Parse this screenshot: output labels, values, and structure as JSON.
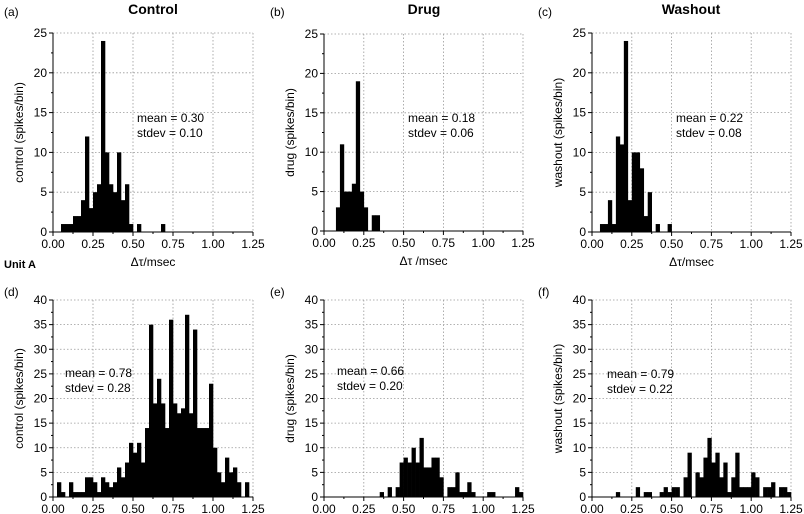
{
  "column_titles": [
    "Control",
    "Drug",
    "Washout"
  ],
  "row_label": "Unit A",
  "chart_data": [
    {
      "panel": "(a)",
      "type": "bar",
      "ylabel": "control (spikes/bin)",
      "xlabel": "Δτ/msec",
      "xlim": [
        0,
        1.25
      ],
      "ylim": [
        0,
        25
      ],
      "xticks": [
        "0.00",
        "0.25",
        "0.50",
        "0.75",
        "1.00",
        "1.25"
      ],
      "yticks": [
        "0",
        "5",
        "10",
        "15",
        "20",
        "25"
      ],
      "grid": true,
      "bin_start": 0,
      "bin_width": 0.025,
      "values": [
        0,
        0,
        1,
        1,
        1,
        2,
        2,
        4,
        12,
        3,
        5,
        6,
        24,
        10,
        6,
        5,
        10,
        4,
        6,
        1,
        0,
        1,
        0,
        0,
        0,
        0,
        0,
        1,
        0,
        0,
        0,
        0,
        0,
        0,
        0,
        0,
        0,
        0,
        0,
        0,
        0,
        0,
        0,
        0,
        0,
        0,
        0,
        0,
        0,
        0
      ],
      "annotation": [
        "mean = 0.30",
        "stdev = 0.10"
      ]
    },
    {
      "panel": "(b)",
      "type": "bar",
      "ylabel": "drug (spikes/bin)",
      "xlabel": "Δτ /msec",
      "xlim": [
        0,
        1.25
      ],
      "ylim": [
        0,
        25
      ],
      "xticks": [
        "0.00",
        "0.25",
        "0.50",
        "0.75",
        "1.00",
        "1.25"
      ],
      "yticks": [
        "0",
        "5",
        "10",
        "15",
        "20",
        "25"
      ],
      "grid": true,
      "bin_start": 0,
      "bin_width": 0.025,
      "values": [
        0,
        0,
        0,
        3,
        11,
        5,
        5,
        6,
        19,
        5,
        3,
        0,
        2,
        2,
        0,
        0,
        0,
        0,
        0,
        0,
        0,
        0,
        0,
        0,
        0,
        0,
        0,
        0,
        0,
        0,
        0,
        0,
        0,
        0,
        0,
        0,
        0,
        0,
        0,
        0,
        0,
        0,
        0,
        0,
        0,
        0,
        0,
        0,
        0,
        0
      ],
      "annotation": [
        "mean = 0.18",
        "stdev = 0.06"
      ]
    },
    {
      "panel": "(c)",
      "type": "bar",
      "ylabel": "washout (spikes/bin)",
      "xlabel": "Δτ/msec",
      "xlim": [
        0,
        1.25
      ],
      "ylim": [
        0,
        25
      ],
      "xticks": [
        "0.00",
        "0.25",
        "0.50",
        "0.75",
        "1.00",
        "1.25"
      ],
      "yticks": [
        "0",
        "5",
        "10",
        "15",
        "20",
        "25"
      ],
      "grid": true,
      "bin_start": 0,
      "bin_width": 0.025,
      "values": [
        0,
        0,
        1,
        1,
        4,
        1,
        12,
        11,
        24,
        4,
        10,
        10,
        8,
        2,
        5,
        0,
        1,
        0,
        0,
        1,
        0,
        0,
        0,
        0,
        0,
        0,
        0,
        0,
        0,
        0,
        0,
        0,
        0,
        0,
        0,
        0,
        0,
        0,
        0,
        0,
        0,
        0,
        0,
        0,
        0,
        0,
        0,
        0,
        0,
        0
      ],
      "annotation": [
        "mean = 0.22",
        "stdev = 0.08"
      ]
    },
    {
      "panel": "(d)",
      "type": "bar",
      "ylabel": "control (spikes/bin)",
      "xlabel": "",
      "xlim": [
        0,
        1.25
      ],
      "ylim": [
        0,
        40
      ],
      "xticks": [
        "0.00",
        "0.25",
        "0.50",
        "0.75",
        "1.00",
        "1.25"
      ],
      "yticks": [
        "0",
        "5",
        "10",
        "15",
        "20",
        "25",
        "30",
        "35",
        "40"
      ],
      "grid": true,
      "bin_start": 0,
      "bin_width": 0.025,
      "values": [
        0,
        3,
        1,
        0,
        3,
        1,
        1,
        1,
        4,
        4,
        3,
        1,
        4,
        3,
        2,
        3,
        6,
        4,
        7,
        11,
        9,
        11,
        7,
        14,
        35,
        19,
        24,
        19,
        14,
        36,
        19,
        17,
        18,
        37,
        17,
        34,
        14,
        14,
        14,
        23,
        10,
        5,
        3,
        8,
        5,
        6,
        3,
        0,
        3,
        0
      ],
      "annotation": [
        "mean = 0.78",
        "stdev = 0.28"
      ]
    },
    {
      "panel": "(e)",
      "type": "bar",
      "ylabel": "drug (spikes/bin)",
      "xlabel": "",
      "xlim": [
        0,
        1.25
      ],
      "ylim": [
        0,
        40
      ],
      "xticks": [
        "0.00",
        "0.25",
        "0.50",
        "0.75",
        "1.00",
        "1.25"
      ],
      "yticks": [
        "0",
        "5",
        "10",
        "15",
        "20",
        "25",
        "30",
        "35",
        "40"
      ],
      "grid": true,
      "bin_start": 0,
      "bin_width": 0.025,
      "values": [
        0,
        0,
        0,
        0,
        0,
        0,
        0,
        0,
        0,
        0,
        0,
        0,
        0,
        0,
        1,
        0,
        2,
        0,
        2,
        7,
        8,
        7,
        10,
        7,
        12,
        6,
        6,
        8,
        8,
        4,
        0,
        2,
        2,
        5,
        1,
        1,
        3,
        1,
        0,
        0,
        0,
        1,
        1,
        0,
        0,
        0,
        0,
        0,
        2,
        1
      ],
      "annotation": [
        "mean = 0.66",
        "stdev = 0.20"
      ]
    },
    {
      "panel": "(f)",
      "type": "bar",
      "ylabel": "washout (spikes/bin)",
      "xlabel": "",
      "xlim": [
        0,
        1.25
      ],
      "ylim": [
        0,
        40
      ],
      "xticks": [
        "0.00",
        "0.25",
        "0.50",
        "0.75",
        "1.00",
        "1.25"
      ],
      "yticks": [
        "0",
        "5",
        "10",
        "15",
        "20",
        "25",
        "30",
        "35",
        "40"
      ],
      "grid": true,
      "bin_start": 0,
      "bin_width": 0.025,
      "values": [
        0,
        0,
        0,
        0,
        0,
        0,
        1,
        0,
        0,
        0,
        0,
        2,
        0,
        1,
        1,
        0,
        0,
        1,
        2,
        1,
        2,
        2,
        0,
        4,
        9,
        0,
        5,
        4,
        8,
        12,
        7,
        9,
        4,
        7,
        1,
        4,
        9,
        2,
        2,
        2,
        5,
        4,
        0,
        2,
        2,
        3,
        0,
        2,
        2,
        1
      ],
      "annotation": [
        "mean = 0.79",
        "stdev = 0.22"
      ]
    }
  ],
  "colors": {
    "bars": "#000000",
    "grid": "#999999"
  }
}
